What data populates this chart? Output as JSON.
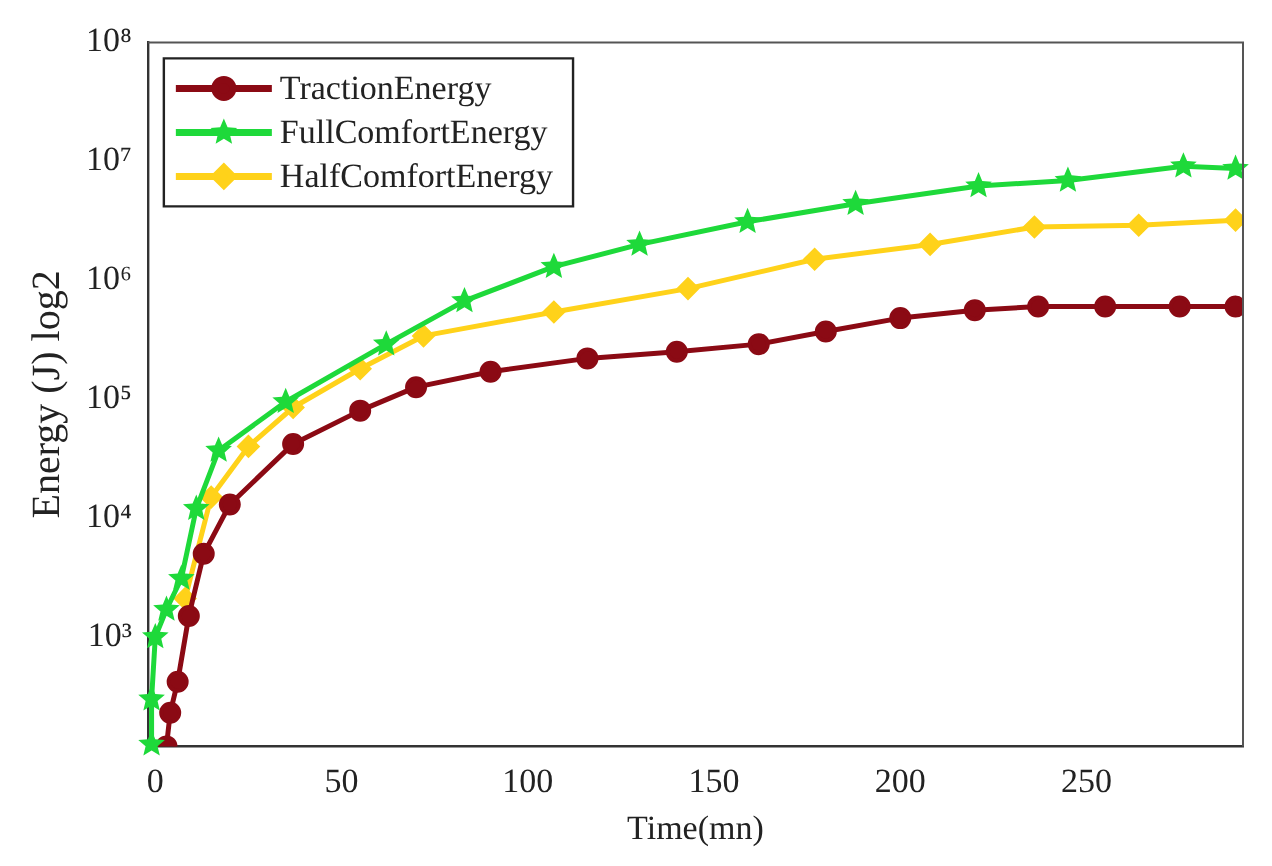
{
  "chart_data": {
    "type": "line",
    "xlabel": "Time(mn)",
    "ylabel": "Energy (J) log2",
    "log": "y",
    "grid": false,
    "legend": "top left",
    "xlim": [
      -2,
      292
    ],
    "xticks": [
      0,
      50,
      100,
      150,
      200,
      250
    ],
    "ylim": [
      120,
      100000000
    ],
    "yticks": [
      {
        "value": 1000,
        "label": "10³"
      },
      {
        "value": 10000,
        "label": "10⁴"
      },
      {
        "value": 100000,
        "label": "10⁵"
      },
      {
        "value": 1000000,
        "label": "10⁶"
      },
      {
        "value": 10000000,
        "label": "10⁷"
      },
      {
        "value": 100000000,
        "label": "10⁸"
      }
    ],
    "series": [
      {
        "name": "TractionEnergy",
        "color": "#8b0a14",
        "marker": "circle",
        "x": [
          3,
          4,
          6,
          9,
          13,
          20,
          37,
          55,
          70,
          90,
          116,
          140,
          162,
          180,
          200,
          220,
          237,
          255,
          275,
          290
        ],
        "values": [
          120,
          230,
          420,
          1500,
          5000,
          13000,
          42000,
          80000,
          126000,
          170000,
          220000,
          250000,
          290000,
          370000,
          480000,
          560000,
          600000,
          600000,
          600000,
          600000
        ]
      },
      {
        "name": "FullComfortEnergy",
        "color": "#1ed93a",
        "marker": "star",
        "x": [
          -1,
          -1,
          0,
          3,
          7,
          11,
          17,
          35,
          62,
          83,
          107,
          130,
          159,
          188,
          221,
          245,
          276,
          290
        ],
        "values": [
          125,
          300,
          1000,
          1700,
          3100,
          12000,
          37000,
          95000,
          290000,
          670000,
          1300000,
          2000000,
          3100000,
          4400000,
          6200000,
          6900000,
          9100000,
          8700000
        ]
      },
      {
        "name": "HalfComfortEnergy",
        "color": "#ffd21a",
        "marker": "diamond",
        "x": [
          8,
          15,
          25,
          37,
          55,
          72,
          107,
          143,
          177,
          208,
          236,
          264,
          290
        ],
        "values": [
          2100,
          15000,
          40000,
          85000,
          180000,
          340000,
          540000,
          850000,
          1500000,
          2000000,
          2800000,
          2900000,
          3200000
        ]
      }
    ]
  }
}
